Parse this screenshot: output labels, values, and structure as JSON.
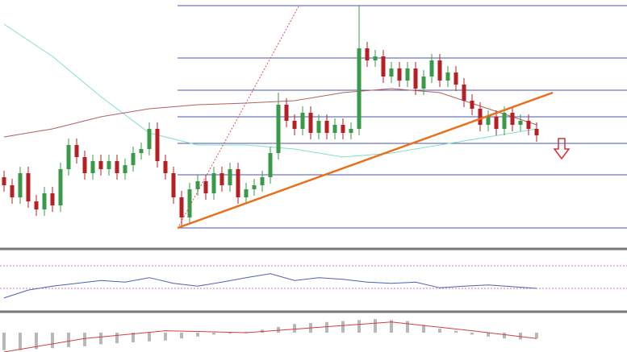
{
  "chart_data": [
    {
      "type": "candlestick",
      "xlim": [
        -0.5,
        77.2
      ],
      "ylim": [
        129,
        437
      ],
      "up_color": "#3a9a4a",
      "down_color": "#b52025",
      "open": [
        217,
        207,
        192,
        222,
        187,
        177,
        197,
        182,
        227,
        257,
        242,
        222,
        237,
        227,
        237,
        222,
        232,
        247,
        252,
        277,
        237,
        222,
        192,
        167,
        202,
        212,
        197,
        222,
        207,
        227,
        192,
        202,
        207,
        217,
        247,
        307,
        287,
        277,
        297,
        272,
        287,
        272,
        282,
        272,
        277,
        377,
        362,
        367,
        342,
        352,
        337,
        352,
        327,
        342,
        362,
        337,
        347,
        332,
        312,
        302,
        282,
        292,
        277,
        297,
        282,
        287,
        277
      ],
      "high": [
        225,
        215,
        230,
        230,
        195,
        205,
        205,
        235,
        265,
        265,
        250,
        245,
        245,
        245,
        245,
        240,
        255,
        260,
        285,
        285,
        245,
        230,
        200,
        210,
        220,
        220,
        230,
        230,
        235,
        235,
        210,
        215,
        225,
        255,
        322,
        315,
        295,
        305,
        305,
        295,
        295,
        290,
        290,
        285,
        430,
        385,
        375,
        375,
        360,
        360,
        360,
        360,
        350,
        370,
        370,
        355,
        355,
        340,
        320,
        310,
        300,
        300,
        305,
        305,
        295,
        295,
        285
      ],
      "low": [
        199,
        184,
        184,
        179,
        169,
        169,
        174,
        174,
        219,
        234,
        214,
        214,
        219,
        219,
        214,
        214,
        224,
        239,
        244,
        229,
        214,
        184,
        157,
        159,
        194,
        189,
        189,
        199,
        199,
        184,
        184,
        194,
        199,
        209,
        239,
        279,
        269,
        269,
        264,
        264,
        264,
        264,
        264,
        264,
        269,
        354,
        354,
        334,
        334,
        329,
        329,
        319,
        319,
        334,
        329,
        329,
        324,
        304,
        294,
        274,
        274,
        269,
        269,
        274,
        274,
        269,
        261
      ],
      "close": [
        207,
        192,
        222,
        187,
        177,
        197,
        182,
        227,
        257,
        242,
        222,
        237,
        227,
        237,
        222,
        232,
        247,
        252,
        277,
        237,
        222,
        192,
        167,
        202,
        212,
        197,
        222,
        207,
        227,
        192,
        202,
        207,
        217,
        247,
        307,
        287,
        277,
        297,
        272,
        287,
        272,
        282,
        272,
        277,
        377,
        362,
        367,
        342,
        352,
        337,
        352,
        327,
        342,
        362,
        337,
        347,
        332,
        312,
        302,
        282,
        292,
        277,
        297,
        282,
        287,
        277,
        269
      ],
      "lines": [
        {
          "color": "#7fe0c8",
          "x": [
            0,
            6,
            12,
            18,
            24,
            30,
            36,
            42,
            48,
            54,
            60,
            66
          ],
          "values": [
            407,
            367,
            317,
            272,
            257,
            257,
            252,
            242,
            247,
            257,
            267,
            277
          ]
        },
        {
          "color": "#b06060",
          "x": [
            0,
            6,
            12,
            18,
            24,
            30,
            36,
            42,
            48,
            54,
            60,
            66
          ],
          "values": [
            267,
            277,
            292,
            302,
            307,
            309,
            312,
            322,
            327,
            322,
            302,
            282
          ]
        }
      ],
      "trendlines": [
        {
          "color": "#e8701a",
          "x": [
            21.5,
            68
          ],
          "values": [
            154,
            322
          ]
        },
        {
          "color": "#e05050",
          "dashed": true,
          "x": [
            21.7,
            36.5
          ],
          "values": [
            157,
            429
          ]
        }
      ],
      "levels": [
        430,
        365,
        325,
        292,
        259,
        220,
        154
      ],
      "levels_color": "#4a55a8",
      "levels_from": 21.5
    },
    {
      "type": "line",
      "xlim": [
        -0.5,
        77.2
      ],
      "ylim": [
        0,
        100
      ],
      "levels": [
        70,
        30
      ],
      "levels_color": "#d070c0",
      "series": [
        {
          "color": "#5060b0",
          "x": [
            0,
            3,
            6,
            9,
            12,
            15,
            18,
            21,
            24,
            27,
            30,
            33,
            36,
            39,
            42,
            45,
            48,
            51,
            54,
            57,
            60,
            63,
            66
          ],
          "values": [
            13,
            27,
            34,
            39,
            44,
            41,
            49,
            39,
            34,
            41,
            49,
            56,
            44,
            49,
            46,
            41,
            39,
            41,
            31,
            34,
            36,
            33,
            30
          ]
        }
      ]
    },
    {
      "type": "bar",
      "xlim": [
        -0.5,
        77.2
      ],
      "ylim": [
        -1,
        1
      ],
      "series": [
        {
          "kind": "bar",
          "color": "#b8b8b8",
          "x": [
            0,
            2,
            4,
            6,
            8,
            10,
            12,
            14,
            16,
            18,
            20,
            22,
            24,
            26,
            28,
            30,
            32,
            34,
            36,
            38,
            40,
            42,
            44,
            46,
            48,
            50,
            52,
            54,
            56,
            58,
            60,
            62,
            64,
            66
          ],
          "values": [
            -0.9,
            -0.9,
            -0.85,
            -0.8,
            -0.75,
            -0.7,
            -0.6,
            -0.55,
            -0.5,
            -0.45,
            -0.4,
            -0.3,
            -0.2,
            -0.1,
            -0.05,
            0.05,
            0.15,
            0.3,
            0.45,
            0.5,
            0.55,
            0.6,
            0.65,
            0.7,
            0.65,
            0.6,
            0.4,
            0.2,
            0.1,
            -0.1,
            -0.2,
            -0.3,
            -0.35,
            -0.3
          ]
        },
        {
          "kind": "line",
          "color": "#d04040",
          "x": [
            0,
            10,
            20,
            30,
            48,
            58,
            66
          ],
          "values": [
            -1,
            -0.3,
            0.1,
            0,
            0.55,
            0.1,
            -0.3
          ]
        }
      ]
    }
  ]
}
